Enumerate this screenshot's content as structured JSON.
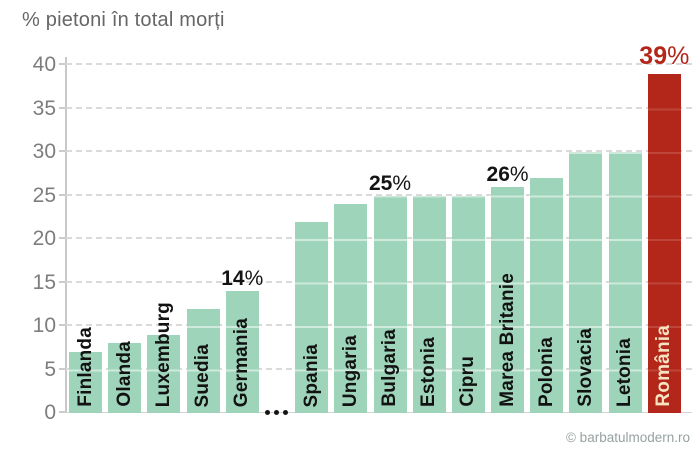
{
  "title": "% pietoni în total morți",
  "credit": "© barbatulmodern.ro",
  "colors": {
    "bar": "#9ed4ba",
    "highlight_bar": "#b3261a",
    "highlight_text": "#b3261a",
    "label_text": "#121212",
    "grid": "#dadada",
    "axis": "#c8c8c8",
    "tick_text": "#7d7d7d",
    "title_text": "#666666",
    "credit_text": "#97a1a1"
  },
  "chart_data": {
    "type": "bar",
    "title": "% pietoni în total morți",
    "xlabel": "",
    "ylabel": "",
    "unit": "%",
    "ylim": [
      0,
      40
    ],
    "yticks": [
      0,
      5,
      10,
      15,
      20,
      25,
      30,
      35,
      40
    ],
    "grid": "horizontal-dashed",
    "legend": "none",
    "gap_after_index": 4,
    "gap_marker": "...",
    "bars": [
      {
        "label": "Finlanda",
        "value": 7,
        "group": 1
      },
      {
        "label": "Olanda",
        "value": 8,
        "group": 1
      },
      {
        "label": "Luxemburg",
        "value": 9,
        "group": 1
      },
      {
        "label": "Suedia",
        "value": 12,
        "group": 1
      },
      {
        "label": "Germania",
        "value": 14,
        "group": 1,
        "annotation": "14%"
      },
      {
        "label": "Spania",
        "value": 22,
        "group": 2
      },
      {
        "label": "Ungaria",
        "value": 24,
        "group": 2
      },
      {
        "label": "Bulgaria",
        "value": 25,
        "group": 2,
        "annotation": "25%"
      },
      {
        "label": "Estonia",
        "value": 25,
        "group": 2
      },
      {
        "label": "Cipru",
        "value": 25,
        "group": 2
      },
      {
        "label": "Marea Britanie",
        "value": 26,
        "group": 2,
        "annotation": "26%"
      },
      {
        "label": "Polonia",
        "value": 27,
        "group": 2
      },
      {
        "label": "Slovacia",
        "value": 30,
        "group": 2
      },
      {
        "label": "Letonia",
        "value": 30,
        "group": 2
      },
      {
        "label": "România",
        "value": 39,
        "group": 2,
        "annotation": "39%",
        "highlight": true
      }
    ]
  }
}
